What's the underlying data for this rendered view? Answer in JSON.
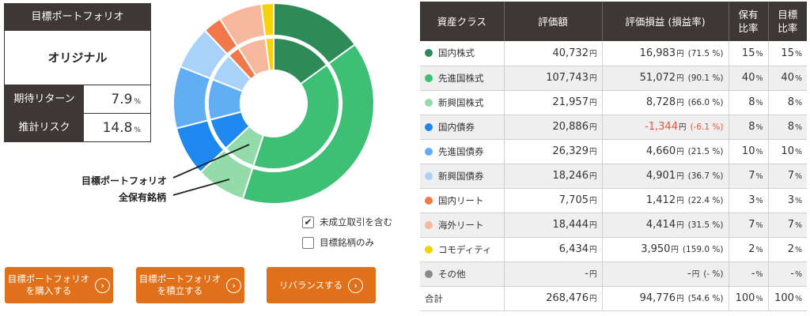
{
  "info": {
    "header": "目標ポートフォリオ",
    "name": "オリジナル",
    "return_label": "期待リターン",
    "return_value": "7.9",
    "risk_label": "推計リスク",
    "risk_value": "14.8",
    "pct_unit": "%"
  },
  "chart": {
    "callout_target": "目標ポートフォリオ",
    "callout_holdings": "全保有銘柄"
  },
  "options": {
    "include_pending_label": "未成立取引を含む",
    "include_pending_checked": true,
    "target_only_label": "目標銘柄のみ",
    "target_only_checked": false,
    "check_mark": "✔"
  },
  "buttons": {
    "buy": "目標ポートフォリオ\nを購入する",
    "accumulate": "目標ポートフォリオ\nを積立する",
    "rebalance": "リバランスする",
    "arrow": "›"
  },
  "table": {
    "headers": {
      "asset_class": "資産クラス",
      "valuation": "評価額",
      "gain": "評価損益 (損益率)",
      "holding_ratio": "保有\n比率",
      "target_ratio": "目標\n比率"
    },
    "yen": "円",
    "pct": "%",
    "rows": [
      {
        "name": "国内株式",
        "color": "#2e8b57",
        "valuation": "40,732",
        "gain": "16,983",
        "rate": "(71.5 %)",
        "holding": "15",
        "target": "15",
        "negative": false
      },
      {
        "name": "先進国株式",
        "color": "#3dbf76",
        "valuation": "107,743",
        "gain": "51,072",
        "rate": "(90.1 %)",
        "holding": "40",
        "target": "40",
        "negative": false
      },
      {
        "name": "新興国株式",
        "color": "#93dcaa",
        "valuation": "21,957",
        "gain": "8,728",
        "rate": "(66.0 %)",
        "holding": "8",
        "target": "8",
        "negative": false
      },
      {
        "name": "国内債券",
        "color": "#1e88f0",
        "valuation": "20,886",
        "gain": "-1,344",
        "rate": "(-6.1 %)",
        "holding": "8",
        "target": "8",
        "negative": true
      },
      {
        "name": "先進国債券",
        "color": "#62aef5",
        "valuation": "26,329",
        "gain": "4,660",
        "rate": "(21.5 %)",
        "holding": "10",
        "target": "10",
        "negative": false
      },
      {
        "name": "新興国債券",
        "color": "#a8d2fa",
        "valuation": "18,246",
        "gain": "4,901",
        "rate": "(36.7 %)",
        "holding": "7",
        "target": "7",
        "negative": false
      },
      {
        "name": "国内リート",
        "color": "#f2784b",
        "valuation": "7,705",
        "gain": "1,412",
        "rate": "(22.4 %)",
        "holding": "3",
        "target": "3",
        "negative": false
      },
      {
        "name": "海外リート",
        "color": "#f7b79c",
        "valuation": "18,444",
        "gain": "4,414",
        "rate": "(31.5 %)",
        "holding": "7",
        "target": "7",
        "negative": false
      },
      {
        "name": "コモディティ",
        "color": "#f5d20a",
        "valuation": "6,434",
        "gain": "3,950",
        "rate": "(159.0 %)",
        "holding": "2",
        "target": "2",
        "negative": false
      },
      {
        "name": "その他",
        "color": "#8a8a8a",
        "valuation": "-",
        "gain": "-",
        "rate": "(- %)",
        "holding": "-",
        "target": "-",
        "negative": false
      }
    ],
    "total": {
      "label": "合計",
      "valuation": "268,476",
      "gain": "94,776",
      "rate": "(54.6 %)",
      "holding": "100",
      "target": "100"
    }
  }
}
